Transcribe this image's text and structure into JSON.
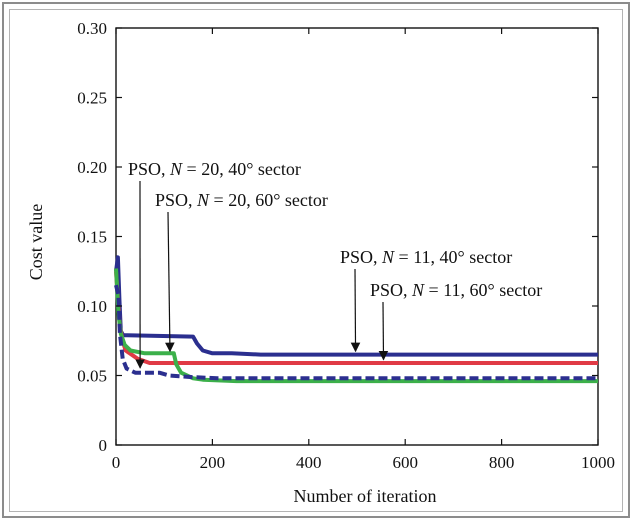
{
  "chart_data": {
    "type": "line",
    "xlabel": "Number of iteration",
    "ylabel": "Cost value",
    "xlim": [
      0,
      1000
    ],
    "ylim": [
      0,
      0.3
    ],
    "x_ticks": [
      0,
      200,
      400,
      600,
      800,
      1000
    ],
    "x_tick_labels": [
      "0",
      "200",
      "400",
      "600",
      "800",
      "1000"
    ],
    "y_ticks": [
      0,
      0.05,
      0.1,
      0.15,
      0.2,
      0.25,
      0.3
    ],
    "y_tick_labels": [
      "0",
      "0.05",
      "0.10",
      "0.15",
      "0.20",
      "0.25",
      "0.30"
    ],
    "grid": false,
    "legend": "none",
    "series": [
      {
        "color": "#2b2f8f",
        "style": "solid",
        "points": [
          [
            0,
            0.125
          ],
          [
            4,
            0.135
          ],
          [
            7,
            0.105
          ],
          [
            10,
            0.082
          ],
          [
            15,
            0.079
          ],
          [
            160,
            0.078
          ],
          [
            168,
            0.073
          ],
          [
            180,
            0.068
          ],
          [
            200,
            0.066
          ],
          [
            240,
            0.066
          ],
          [
            300,
            0.065
          ],
          [
            1000,
            0.065
          ]
        ]
      },
      {
        "color": "#e03a45",
        "style": "solid",
        "points": [
          [
            0,
            0.125
          ],
          [
            4,
            0.105
          ],
          [
            8,
            0.085
          ],
          [
            14,
            0.075
          ],
          [
            20,
            0.068
          ],
          [
            45,
            0.062
          ],
          [
            70,
            0.059
          ],
          [
            1000,
            0.059
          ]
        ]
      },
      {
        "color": "#3cb04a",
        "style": "solid",
        "points": [
          [
            0,
            0.127
          ],
          [
            5,
            0.095
          ],
          [
            10,
            0.08
          ],
          [
            18,
            0.072
          ],
          [
            30,
            0.068
          ],
          [
            60,
            0.066
          ],
          [
            120,
            0.066
          ],
          [
            125,
            0.058
          ],
          [
            135,
            0.052
          ],
          [
            160,
            0.048
          ],
          [
            180,
            0.047
          ],
          [
            250,
            0.046
          ],
          [
            1000,
            0.046
          ]
        ]
      },
      {
        "color": "#2b2f8f",
        "style": "dashed",
        "points": [
          [
            0,
            0.115
          ],
          [
            5,
            0.108
          ],
          [
            8,
            0.08
          ],
          [
            14,
            0.062
          ],
          [
            22,
            0.055
          ],
          [
            40,
            0.052
          ],
          [
            90,
            0.052
          ],
          [
            110,
            0.05
          ],
          [
            150,
            0.049
          ],
          [
            210,
            0.048
          ],
          [
            350,
            0.048
          ],
          [
            1000,
            0.048
          ]
        ]
      }
    ],
    "annotations": [
      {
        "prefix": "PSO, ",
        "italic": "N",
        "suffix": " = 20, 40° sector",
        "arrow_to": [
          50,
          0.054
        ]
      },
      {
        "prefix": "PSO, ",
        "italic": "N",
        "suffix": " = 20, 60° sector",
        "arrow_to": [
          112,
          0.066
        ]
      },
      {
        "prefix": "PSO, ",
        "italic": "N",
        "suffix": " = 11, 40° sector",
        "arrow_to": [
          497,
          0.066
        ]
      },
      {
        "prefix": "PSO, ",
        "italic": "N",
        "suffix": " = 11, 60° sector",
        "arrow_to": [
          555,
          0.06
        ]
      }
    ]
  }
}
